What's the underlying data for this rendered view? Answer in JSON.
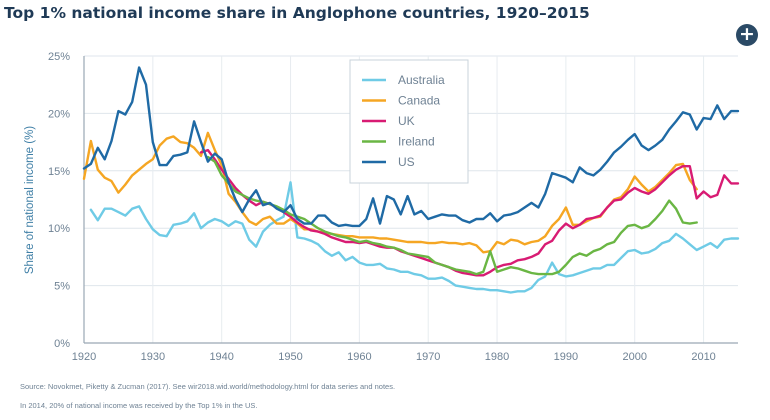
{
  "header": {
    "title": "Top 1% national income share in Anglophone countries, 1920–2015",
    "expand_icon": "plus-circle-icon",
    "expand_glyph": "+"
  },
  "footer": {
    "source": "Source: Novokmet, Piketty & Zucman (2017). See wir2018.wid.world/methodology.html for data series and notes.",
    "note": "In 2014, 20% of national income was received by the Top 1% in the US."
  },
  "chart_data": {
    "type": "line",
    "ylabel": "Share of national income (%)",
    "xlim": [
      1920,
      2015
    ],
    "ylim": [
      0,
      25
    ],
    "x_ticks": [
      1920,
      1930,
      1940,
      1950,
      1960,
      1970,
      1980,
      1990,
      2000,
      2010
    ],
    "y_ticks": [
      0,
      5,
      10,
      15,
      20,
      25
    ],
    "y_tick_labels": [
      "0%",
      "5%",
      "10%",
      "15%",
      "20%",
      "25%"
    ],
    "grid": true,
    "legend_position": "top-center",
    "series": [
      {
        "name": "Australia",
        "color": "#6fcbe6",
        "x": [
          1921,
          1922,
          1923,
          1924,
          1925,
          1926,
          1927,
          1928,
          1929,
          1930,
          1931,
          1932,
          1933,
          1934,
          1935,
          1936,
          1937,
          1938,
          1939,
          1940,
          1941,
          1942,
          1943,
          1944,
          1945,
          1946,
          1947,
          1948,
          1949,
          1950,
          1951,
          1952,
          1953,
          1954,
          1955,
          1956,
          1957,
          1958,
          1959,
          1960,
          1961,
          1962,
          1963,
          1964,
          1965,
          1966,
          1967,
          1968,
          1969,
          1970,
          1971,
          1972,
          1973,
          1974,
          1975,
          1976,
          1977,
          1978,
          1979,
          1980,
          1981,
          1982,
          1983,
          1984,
          1985,
          1986,
          1987,
          1988,
          1989,
          1990,
          1991,
          1992,
          1993,
          1994,
          1995,
          1996,
          1997,
          1998,
          1999,
          2000,
          2001,
          2002,
          2003,
          2004,
          2005,
          2006,
          2007,
          2008,
          2009,
          2010,
          2011,
          2012,
          2013,
          2014,
          2015
        ],
        "y": [
          11.6,
          10.7,
          11.7,
          11.7,
          11.4,
          11.1,
          11.7,
          11.9,
          10.8,
          9.9,
          9.4,
          9.3,
          10.3,
          10.4,
          10.6,
          11.3,
          10.0,
          10.5,
          10.8,
          10.6,
          10.2,
          10.6,
          10.4,
          9.0,
          8.4,
          9.7,
          10.3,
          10.7,
          11.0,
          14.0,
          9.2,
          9.1,
          8.9,
          8.6,
          8.0,
          7.6,
          7.9,
          7.2,
          7.5,
          7.0,
          6.8,
          6.8,
          6.9,
          6.5,
          6.4,
          6.2,
          6.2,
          6.0,
          5.9,
          5.6,
          5.6,
          5.7,
          5.4,
          5.0,
          4.9,
          4.8,
          4.7,
          4.7,
          4.6,
          4.6,
          4.5,
          4.4,
          4.5,
          4.5,
          4.8,
          5.5,
          5.8,
          7.0,
          6.0,
          5.8,
          5.9,
          6.1,
          6.3,
          6.5,
          6.5,
          6.8,
          6.8,
          7.4,
          8.0,
          8.1,
          7.8,
          7.9,
          8.2,
          8.7,
          8.9,
          9.5,
          9.1,
          8.6,
          8.1,
          8.4,
          8.7,
          8.3,
          9.0,
          9.1,
          9.1
        ]
      },
      {
        "name": "Canada",
        "color": "#f5a623",
        "x": [
          1920,
          1921,
          1922,
          1923,
          1924,
          1925,
          1926,
          1927,
          1928,
          1929,
          1930,
          1931,
          1932,
          1933,
          1934,
          1935,
          1936,
          1937,
          1938,
          1939,
          1940,
          1941,
          1942,
          1943,
          1944,
          1945,
          1946,
          1947,
          1948,
          1949,
          1950,
          1951,
          1952,
          1953,
          1954,
          1955,
          1956,
          1957,
          1958,
          1959,
          1960,
          1961,
          1962,
          1963,
          1964,
          1965,
          1966,
          1967,
          1968,
          1969,
          1970,
          1971,
          1972,
          1973,
          1974,
          1975,
          1976,
          1977,
          1978,
          1979,
          1980,
          1981,
          1982,
          1983,
          1984,
          1985,
          1986,
          1987,
          1988,
          1989,
          1990,
          1991,
          1992,
          1993,
          1994,
          1995,
          1996,
          1997,
          1998,
          1999,
          2000,
          2001,
          2002,
          2003,
          2004,
          2005,
          2006,
          2007,
          2008,
          2009
        ],
        "y": [
          14.3,
          17.6,
          15.1,
          14.4,
          14.1,
          13.1,
          13.8,
          14.6,
          15.1,
          15.6,
          16.0,
          17.2,
          17.8,
          18.0,
          17.5,
          17.4,
          17.0,
          16.3,
          18.3,
          16.8,
          15.5,
          13.0,
          12.3,
          11.4,
          10.6,
          10.3,
          10.8,
          11.0,
          10.4,
          10.4,
          10.8,
          10.4,
          9.9,
          9.9,
          9.7,
          9.6,
          9.5,
          9.4,
          9.3,
          9.3,
          9.2,
          9.2,
          9.2,
          9.1,
          9.1,
          9.0,
          8.9,
          8.8,
          8.8,
          8.8,
          8.7,
          8.7,
          8.8,
          8.7,
          8.7,
          8.6,
          8.7,
          8.5,
          7.9,
          8.0,
          8.8,
          8.6,
          9.0,
          8.9,
          8.6,
          8.8,
          8.9,
          9.3,
          10.2,
          10.8,
          11.8,
          10.3,
          10.3,
          10.6,
          10.9,
          11.0,
          11.8,
          12.5,
          12.7,
          13.4,
          14.5,
          13.8,
          13.2,
          13.6,
          14.2,
          14.8,
          15.5,
          15.6,
          14.2,
          13.4
        ]
      },
      {
        "name": "UK",
        "color": "#d81b73",
        "x": [
          1937,
          1938,
          1939,
          1940,
          1941,
          1942,
          1943,
          1944,
          1945,
          1946,
          1947,
          1948,
          1949,
          1950,
          1951,
          1952,
          1953,
          1954,
          1955,
          1956,
          1957,
          1958,
          1959,
          1960,
          1961,
          1962,
          1963,
          1964,
          1965,
          1966,
          1967,
          1968,
          1969,
          1970,
          1971,
          1972,
          1973,
          1974,
          1975,
          1976,
          1977,
          1978,
          1979,
          1980,
          1981,
          1982,
          1983,
          1984,
          1985,
          1986,
          1987,
          1988,
          1989,
          1990,
          1991,
          1992,
          1993,
          1994,
          1995,
          1996,
          1997,
          1998,
          1999,
          2000,
          2001,
          2002,
          2003,
          2004,
          2005,
          2006,
          2007,
          2008,
          2009,
          2010,
          2011,
          2012,
          2013,
          2014,
          2015
        ],
        "y": [
          16.6,
          16.8,
          16.0,
          15.1,
          14.3,
          13.5,
          12.9,
          12.4,
          12.0,
          12.3,
          12.1,
          11.8,
          11.4,
          11.0,
          10.5,
          10.1,
          9.8,
          9.7,
          9.5,
          9.2,
          9.0,
          8.8,
          8.8,
          8.7,
          8.8,
          8.6,
          8.4,
          8.3,
          8.3,
          8.0,
          7.8,
          7.6,
          7.4,
          7.2,
          7.0,
          6.8,
          6.6,
          6.3,
          6.1,
          6.0,
          5.9,
          5.9,
          6.2,
          6.6,
          6.8,
          6.9,
          7.2,
          7.3,
          7.5,
          7.8,
          8.6,
          8.9,
          9.8,
          10.4,
          10.0,
          10.3,
          10.8,
          10.9,
          11.1,
          11.8,
          12.4,
          12.5,
          13.1,
          13.5,
          13.2,
          13.0,
          13.4,
          14.0,
          14.6,
          15.1,
          15.4,
          15.4,
          12.6,
          13.2,
          12.7,
          12.9,
          14.6,
          13.9,
          13.9
        ]
      },
      {
        "name": "Ireland",
        "color": "#6ab644",
        "x": [
          1938,
          1939,
          1940,
          1941,
          1942,
          1943,
          1944,
          1945,
          1946,
          1947,
          1948,
          1949,
          1950,
          1951,
          1952,
          1953,
          1954,
          1955,
          1956,
          1957,
          1958,
          1959,
          1960,
          1961,
          1962,
          1963,
          1964,
          1965,
          1966,
          1967,
          1968,
          1969,
          1970,
          1971,
          1972,
          1973,
          1974,
          1975,
          1976,
          1977,
          1978,
          1979,
          1980,
          1981,
          1982,
          1983,
          1984,
          1985,
          1986,
          1987,
          1988,
          1989,
          1990,
          1991,
          1992,
          1993,
          1994,
          1995,
          1996,
          1997,
          1998,
          1999,
          2000,
          2001,
          2002,
          2003,
          2004,
          2005,
          2006,
          2007,
          2008,
          2009
        ],
        "y": [
          16.2,
          15.8,
          14.6,
          13.9,
          13.2,
          12.9,
          12.6,
          12.4,
          12.3,
          12.1,
          11.9,
          11.6,
          11.2,
          11.0,
          10.8,
          10.4,
          10.0,
          9.7,
          9.5,
          9.3,
          9.2,
          9.0,
          8.8,
          8.9,
          8.7,
          8.6,
          8.4,
          8.3,
          8.1,
          7.8,
          7.7,
          7.6,
          7.5,
          7.0,
          6.8,
          6.6,
          6.4,
          6.3,
          6.2,
          6.0,
          6.2,
          8.0,
          6.2,
          6.4,
          6.6,
          6.5,
          6.3,
          6.1,
          6.0,
          6.0,
          6.0,
          6.2,
          6.8,
          7.5,
          7.8,
          7.6,
          8.0,
          8.2,
          8.6,
          8.8,
          9.6,
          10.2,
          10.3,
          10.0,
          10.2,
          10.8,
          11.5,
          12.4,
          11.7,
          10.5,
          10.4,
          10.5
        ]
      },
      {
        "name": "US",
        "color": "#1f6aa5",
        "x": [
          1920,
          1921,
          1922,
          1923,
          1924,
          1925,
          1926,
          1927,
          1928,
          1929,
          1930,
          1931,
          1932,
          1933,
          1934,
          1935,
          1936,
          1937,
          1938,
          1939,
          1940,
          1941,
          1942,
          1943,
          1944,
          1945,
          1946,
          1947,
          1948,
          1949,
          1950,
          1951,
          1952,
          1953,
          1954,
          1955,
          1956,
          1957,
          1958,
          1959,
          1960,
          1961,
          1962,
          1963,
          1964,
          1965,
          1966,
          1967,
          1968,
          1969,
          1970,
          1971,
          1972,
          1973,
          1974,
          1975,
          1976,
          1977,
          1978,
          1979,
          1980,
          1981,
          1982,
          1983,
          1984,
          1985,
          1986,
          1987,
          1988,
          1989,
          1990,
          1991,
          1992,
          1993,
          1994,
          1995,
          1996,
          1997,
          1998,
          1999,
          2000,
          2001,
          2002,
          2003,
          2004,
          2005,
          2006,
          2007,
          2008,
          2009,
          2010,
          2011,
          2012,
          2013,
          2014,
          2015
        ],
        "y": [
          15.2,
          15.6,
          17.0,
          16.0,
          17.6,
          20.2,
          19.9,
          21.0,
          24.0,
          22.5,
          17.5,
          15.5,
          15.5,
          16.3,
          16.4,
          16.6,
          19.3,
          17.5,
          15.8,
          16.5,
          16.0,
          14.0,
          12.5,
          11.4,
          12.5,
          13.3,
          12.0,
          12.2,
          11.7,
          11.4,
          12.0,
          10.8,
          10.4,
          10.4,
          11.1,
          11.1,
          10.5,
          10.2,
          10.3,
          10.2,
          10.2,
          10.8,
          12.6,
          10.4,
          12.8,
          12.5,
          11.2,
          12.8,
          11.2,
          11.5,
          10.8,
          11.0,
          11.2,
          11.1,
          11.1,
          10.7,
          10.5,
          10.8,
          10.8,
          11.3,
          10.6,
          11.1,
          11.2,
          11.4,
          11.8,
          12.2,
          11.8,
          13.0,
          14.8,
          14.6,
          14.4,
          14.0,
          15.3,
          14.8,
          14.6,
          15.1,
          15.8,
          16.6,
          17.1,
          17.7,
          18.2,
          17.2,
          16.8,
          17.2,
          17.7,
          18.6,
          19.3,
          20.1,
          19.9,
          18.6,
          19.6,
          19.5,
          20.7,
          19.5,
          20.2,
          20.2
        ]
      }
    ]
  }
}
